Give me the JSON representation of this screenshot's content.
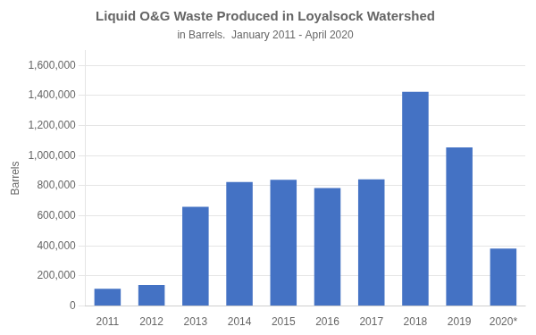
{
  "chart_data": {
    "type": "bar",
    "title": "Liquid O&G Waste Produced in Loyalsock Watershed",
    "subtitle": "in Barrels.  January 2011 - April 2020",
    "ylabel": "Barrels",
    "categories": [
      "2011",
      "2012",
      "2013",
      "2014",
      "2015",
      "2016",
      "2017",
      "2018",
      "2019",
      "2020*"
    ],
    "values": [
      115000,
      140000,
      660000,
      825000,
      840000,
      785000,
      843000,
      1425000,
      1055000,
      382000
    ],
    "color": "#4472C4",
    "ylim": [
      0,
      1700000
    ],
    "yticks": [
      0,
      {
        "value": 200000,
        "label": "200,000"
      },
      {
        "value": 400000,
        "label": "400,000"
      },
      {
        "value": 600000,
        "label": "600,000"
      },
      {
        "value": 800000,
        "label": "800,000"
      },
      {
        "value": 1000000,
        "label": "1,000,000"
      },
      {
        "value": 1200000,
        "label": "1,200,000"
      },
      {
        "value": 1400000,
        "label": "1,400,000"
      },
      {
        "value": 1600000,
        "label": "1,600,000"
      }
    ],
    "grid": true
  }
}
